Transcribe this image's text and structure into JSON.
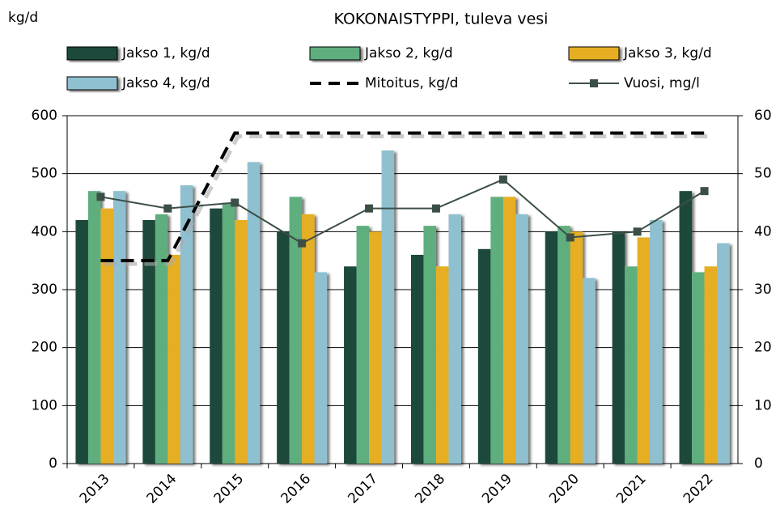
{
  "chart_data": {
    "type": "bar",
    "title": "KOKONAISTYPPI, tuleva vesi",
    "y_label": "kg/d",
    "categories": [
      "2013",
      "2014",
      "2015",
      "2016",
      "2017",
      "2018",
      "2019",
      "2020",
      "2021",
      "2022"
    ],
    "series": [
      {
        "name": "Jakso 1, kg/d",
        "color": "#1d4a3b",
        "type": "bar",
        "values": [
          420,
          420,
          440,
          400,
          340,
          360,
          370,
          400,
          400,
          470
        ]
      },
      {
        "name": "Jakso 2, kg/d",
        "color": "#5fae7e",
        "type": "bar",
        "values": [
          470,
          430,
          450,
          460,
          410,
          410,
          460,
          410,
          340,
          330
        ]
      },
      {
        "name": "Jakso 3, kg/d",
        "color": "#e6ae22",
        "type": "bar",
        "values": [
          440,
          360,
          420,
          430,
          400,
          340,
          460,
          400,
          390,
          340
        ]
      },
      {
        "name": "Jakso 4, kg/d",
        "color": "#8fc0d0",
        "type": "bar",
        "values": [
          470,
          480,
          520,
          330,
          540,
          430,
          430,
          320,
          420,
          380
        ]
      },
      {
        "name": "Mitoitus, kg/d",
        "color": "#000000",
        "type": "dashed",
        "values": [
          350,
          350,
          570,
          570,
          570,
          570,
          570,
          570,
          570,
          570
        ]
      },
      {
        "name": "Vuosi, mg/l",
        "color": "#3c4f47",
        "type": "line",
        "axis": "y2",
        "values": [
          46,
          44,
          45,
          38,
          44,
          44,
          49,
          39,
          40,
          47
        ]
      }
    ],
    "ylim": [
      0,
      600
    ],
    "yticks": [
      0,
      100,
      200,
      300,
      400,
      500,
      600
    ],
    "y2lim": [
      0,
      60
    ],
    "y2ticks": [
      0,
      10,
      20,
      30,
      40,
      50,
      60
    ],
    "grid": true
  }
}
